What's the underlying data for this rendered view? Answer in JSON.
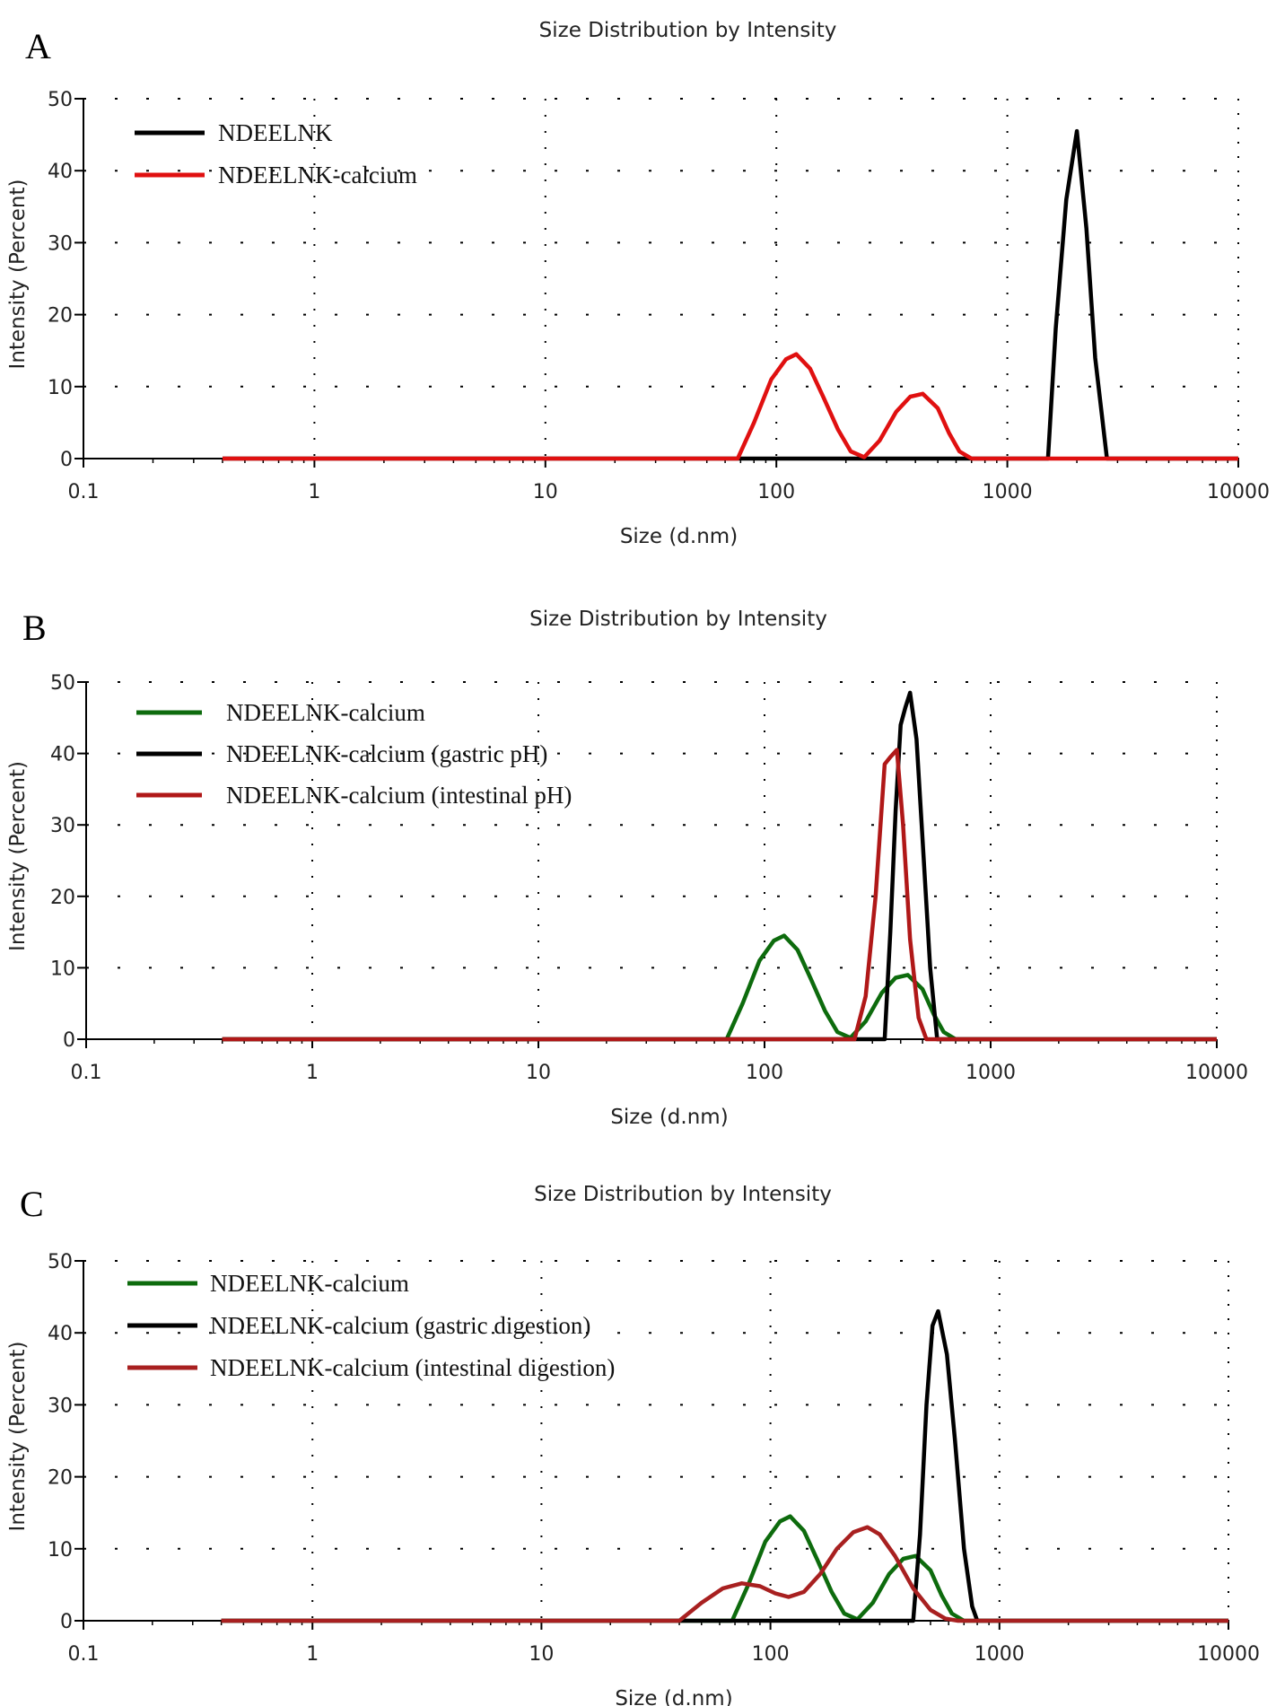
{
  "chart_data": [
    {
      "type": "line",
      "panel_label": "A",
      "title": "Size Distribution by Intensity",
      "xlabel": "Size (d.nm)",
      "ylabel": "Intensity (Percent)",
      "xscale": "log",
      "xlim": [
        0.1,
        10000
      ],
      "ylim": [
        0,
        50
      ],
      "xticks": [
        "0.1",
        "1",
        "10",
        "100",
        "1000",
        "10000"
      ],
      "yticks": [
        "0",
        "10",
        "20",
        "30",
        "40",
        "50"
      ],
      "grid": true,
      "legend": "top-left",
      "series": [
        {
          "name": "NDEELNK",
          "color": "#000000",
          "x": [
            0.4,
            1500,
            1620,
            1800,
            2000,
            2200,
            2400,
            2700,
            10000
          ],
          "y": [
            0,
            0,
            18,
            36,
            45.5,
            32,
            14,
            0,
            0
          ]
        },
        {
          "name": "NDEELNK-calcium",
          "color": "#e01010",
          "x": [
            0.4,
            68,
            80,
            95,
            110,
            122,
            140,
            160,
            185,
            210,
            240,
            280,
            330,
            380,
            430,
            500,
            560,
            620,
            700,
            10000
          ],
          "y": [
            0,
            0,
            5,
            11,
            13.8,
            14.5,
            12.5,
            8.5,
            4,
            1,
            0.2,
            2.5,
            6.5,
            8.6,
            9,
            7,
            3.5,
            1,
            0,
            0
          ]
        }
      ]
    },
    {
      "type": "line",
      "panel_label": "B",
      "title": "Size Distribution by Intensity",
      "xlabel": "Size (d.nm)",
      "ylabel": "Intensity (Percent)",
      "xscale": "log",
      "xlim": [
        0.1,
        10000
      ],
      "ylim": [
        0,
        50
      ],
      "xticks": [
        "0.1",
        "1",
        "10",
        "100",
        "1000",
        "10000"
      ],
      "yticks": [
        "0",
        "10",
        "20",
        "30",
        "40",
        "50"
      ],
      "grid": true,
      "legend": "top-left",
      "series": [
        {
          "name": "NDEELNK-calcium",
          "color": "#0d6b0d",
          "x": [
            0.4,
            68,
            80,
            95,
            110,
            122,
            140,
            160,
            185,
            210,
            240,
            280,
            330,
            380,
            430,
            500,
            560,
            620,
            700,
            10000
          ],
          "y": [
            0,
            0,
            5,
            11,
            13.8,
            14.5,
            12.5,
            8.5,
            4,
            1,
            0.2,
            2.5,
            6.5,
            8.6,
            9,
            7,
            3.5,
            1,
            0,
            0
          ]
        },
        {
          "name": "NDEELNK-calcium (gastric pH)",
          "color": "#000000",
          "x": [
            0.4,
            340,
            360,
            380,
            400,
            420,
            440,
            470,
            500,
            540,
            580,
            10000
          ],
          "y": [
            0,
            0,
            15,
            32,
            44,
            46.5,
            48.5,
            42,
            28,
            10,
            0,
            0
          ]
        },
        {
          "name": "NDEELNK-calcium (intestinal pH)",
          "color": "#b01818",
          "x": [
            0.4,
            250,
            280,
            310,
            340,
            360,
            385,
            410,
            440,
            480,
            520,
            10000
          ],
          "y": [
            0,
            0,
            6,
            20,
            38.5,
            39.5,
            40.5,
            30,
            14,
            3,
            0,
            0
          ]
        }
      ]
    },
    {
      "type": "line",
      "panel_label": "C",
      "title": "Size Distribution by Intensity",
      "xlabel": "Size (d.nm)",
      "ylabel": "Intensity (Percent)",
      "xscale": "log",
      "xlim": [
        0.1,
        10000
      ],
      "ylim": [
        0,
        50
      ],
      "xticks": [
        "0.1",
        "1",
        "10",
        "100",
        "1000",
        "10000"
      ],
      "yticks": [
        "0",
        "10",
        "20",
        "30",
        "40",
        "50"
      ],
      "grid": true,
      "legend": "top-left",
      "series": [
        {
          "name": "NDEELNK-calcium",
          "color": "#0d6b0d",
          "x": [
            0.4,
            68,
            80,
            95,
            110,
            122,
            140,
            160,
            185,
            210,
            240,
            280,
            330,
            380,
            430,
            500,
            560,
            620,
            700,
            10000
          ],
          "y": [
            0,
            0,
            5,
            11,
            13.8,
            14.5,
            12.5,
            8.5,
            4,
            1,
            0.2,
            2.5,
            6.5,
            8.6,
            9,
            7,
            3.5,
            1,
            0,
            0
          ]
        },
        {
          "name": "NDEELNK-calcium (gastric digestion)",
          "color": "#000000",
          "x": [
            0.4,
            420,
            450,
            480,
            510,
            540,
            590,
            640,
            700,
            760,
            800,
            10000
          ],
          "y": [
            0,
            0,
            12,
            30,
            41,
            43,
            37,
            25,
            10,
            2,
            0,
            0
          ]
        },
        {
          "name": "NDEELNK-calcium (intestinal digestion)",
          "color": "#a82020",
          "x": [
            0.4,
            40,
            50,
            62,
            75,
            90,
            105,
            120,
            140,
            165,
            195,
            230,
            265,
            300,
            350,
            420,
            500,
            580,
            660,
            10000
          ],
          "y": [
            0,
            0,
            2.5,
            4.5,
            5.2,
            4.8,
            3.8,
            3.3,
            4,
            6.5,
            10,
            12.3,
            13,
            12,
            9,
            4.5,
            1.5,
            0.3,
            0,
            0
          ]
        }
      ]
    }
  ]
}
